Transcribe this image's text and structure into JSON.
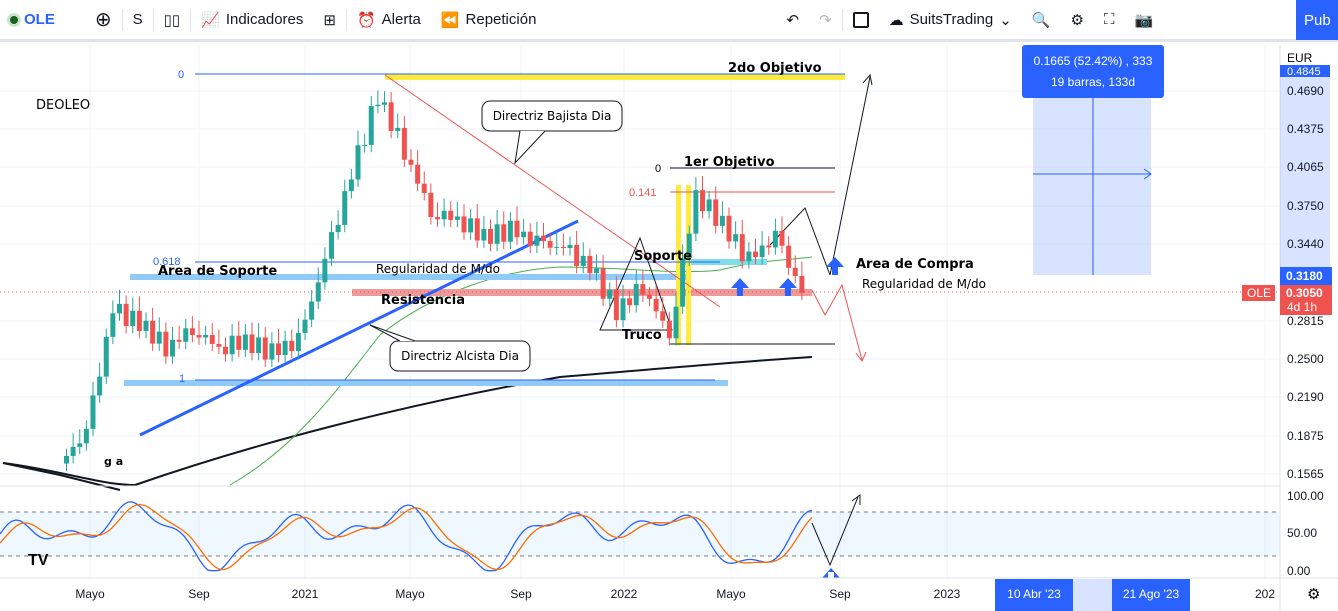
{
  "toolbar": {
    "symbol": "OLE",
    "add_icon": "plus-circle-icon",
    "interval": "S",
    "chart_type_icon": "candles-icon",
    "indicators": "Indicadores",
    "layouts_icon": "grid-icon",
    "alert": "Alerta",
    "replay": "Repetición",
    "undo_icon": "undo-icon",
    "redo_icon": "redo-icon",
    "layout_name": "SuitsTrading",
    "publish": "Pub"
  },
  "chart": {
    "symbol_label": "DEOLEO",
    "currency": "EUR",
    "price_ticks": [
      "0.4690",
      "0.4375",
      "0.4065",
      "0.3750",
      "0.3440",
      "0.2815",
      "0.2500",
      "0.2190",
      "0.1875",
      "0.1565"
    ],
    "price_top_partial": "0.4845",
    "price_badge_blue": "0.3180",
    "price_badge_red": "0.3050",
    "countdown": "4d 1h",
    "series_tag": "OLE",
    "time_ticks": [
      "Mayo",
      "Sep",
      "2021",
      "Mayo",
      "Sep",
      "2022",
      "Mayo",
      "Sep",
      "2023",
      "202"
    ],
    "time_badges": [
      "10 Abr '23",
      "21 Ago '23"
    ],
    "stoch_ticks": [
      "100.00",
      "50.00",
      "0.00"
    ],
    "measure": {
      "line1": "0.1665 (52.42%) , 333",
      "line2": "19 barras, 133d"
    },
    "annotations": {
      "obj2": "2do Objetivo",
      "obj1": "1er Objetivo",
      "fib0_a": "0",
      "fib618": "0.618",
      "fib1": "1",
      "fib0_b": "0",
      "fib141": "0.141",
      "bajista": "Directriz Bajista Dia",
      "alcista": "Directriz Alcista Dia",
      "area_soporte": "Area de Soporte",
      "regularidad1": "Regularidad de M/do",
      "resistencia": "Resistencia",
      "soporte": "Soporte",
      "truco": "Truco",
      "area_compra": "Area de Compra",
      "regularidad2": "Regularidad de M/do",
      "ga": "g a"
    },
    "colors": {
      "up": "#26a69a",
      "down": "#ef5350",
      "blue": "#2962ff",
      "yellow": "#ffeb3b"
    },
    "price_path": [
      [
        "2020-04",
        0.165
      ],
      [
        "2020-05",
        0.19
      ],
      [
        "2020-06",
        0.29
      ],
      [
        "2020-07",
        0.28
      ],
      [
        "2020-08",
        0.26
      ],
      [
        "2020-09",
        0.275
      ],
      [
        "2020-10",
        0.26
      ],
      [
        "2020-11",
        0.265
      ],
      [
        "2020-12",
        0.255
      ],
      [
        "2021-01",
        0.265
      ],
      [
        "2021-02",
        0.33
      ],
      [
        "2021-03",
        0.4
      ],
      [
        "2021-04",
        0.465
      ],
      [
        "2021-05",
        0.42
      ],
      [
        "2021-06",
        0.37
      ],
      [
        "2021-07",
        0.365
      ],
      [
        "2021-08",
        0.35
      ],
      [
        "2021-09",
        0.355
      ],
      [
        "2021-10",
        0.345
      ],
      [
        "2021-11",
        0.34
      ],
      [
        "2021-12",
        0.325
      ],
      [
        "2022-01",
        0.29
      ],
      [
        "2022-02",
        0.31
      ],
      [
        "2022-03",
        0.27
      ],
      [
        "2022-04",
        0.385
      ],
      [
        "2022-05",
        0.36
      ],
      [
        "2022-06",
        0.33
      ],
      [
        "2022-07",
        0.35
      ],
      [
        "2022-08",
        0.305
      ]
    ]
  }
}
